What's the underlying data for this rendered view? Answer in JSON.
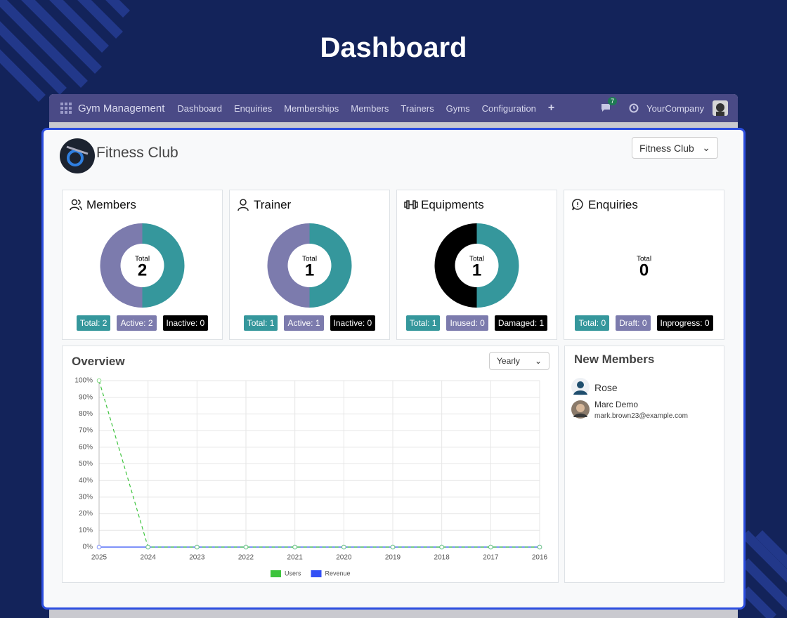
{
  "page_title": "Dashboard",
  "navbar": {
    "app_name": "Gym Management",
    "menu": [
      "Dashboard",
      "Enquiries",
      "Memberships",
      "Members",
      "Trainers",
      "Gyms",
      "Configuration"
    ],
    "message_count": 7,
    "company": "YourCompany"
  },
  "header": {
    "title": "Fitness Club",
    "selector": "Fitness Club"
  },
  "cards": [
    {
      "title": "Members",
      "type": "donut",
      "center_label": "Total",
      "center_value": 2,
      "values": [
        2,
        2,
        0
      ],
      "value_labels": [
        "Total: 2",
        "Active: 2",
        "Inactive: 0"
      ],
      "colors": [
        "#35979c",
        "#7c7bad",
        "#000000"
      ]
    },
    {
      "title": "Trainer",
      "type": "donut",
      "center_label": "Total",
      "center_value": 1,
      "values": [
        1,
        1,
        0
      ],
      "value_labels": [
        "Total: 1",
        "Active: 1",
        "Inactive: 0"
      ],
      "colors": [
        "#35979c",
        "#7c7bad",
        "#000000"
      ]
    },
    {
      "title": "Equipments",
      "type": "donut",
      "center_label": "Total",
      "center_value": 1,
      "values": [
        1,
        0,
        1
      ],
      "value_labels": [
        "Total: 1",
        "Inused: 0",
        "Damaged: 1"
      ],
      "colors": [
        "#35979c",
        "#7c7bad",
        "#000000"
      ]
    },
    {
      "title": "Enquiries",
      "type": "donut",
      "center_label": "Total",
      "center_value": 0,
      "values": [
        0,
        0,
        0
      ],
      "value_labels": [
        "Total: 0",
        "Draft: 0",
        "Inprogress: 0"
      ],
      "colors": [
        "#35979c",
        "#7c7bad",
        "#000000"
      ]
    }
  ],
  "overview": {
    "title": "Overview",
    "period": "Yearly",
    "chart": {
      "type": "line",
      "categories": [
        "2025",
        "2024",
        "2023",
        "2022",
        "2021",
        "2020",
        "2019",
        "2018",
        "2017",
        "2016"
      ],
      "series": [
        {
          "name": "Users",
          "color": "#3ec43e",
          "values": [
            100,
            0,
            0,
            0,
            0,
            0,
            0,
            0,
            0,
            0
          ]
        },
        {
          "name": "Revenue",
          "color": "#3350f5",
          "values": [
            0,
            0,
            0,
            0,
            0,
            0,
            0,
            0,
            0,
            0
          ]
        }
      ],
      "ylim": [
        0,
        100
      ],
      "yticks": [
        {
          "value": 0,
          "label": "0%"
        },
        {
          "value": 10,
          "label": "10%"
        },
        {
          "value": 20,
          "label": "20%"
        },
        {
          "value": 30,
          "label": "30%"
        },
        {
          "value": 40,
          "label": "40%"
        },
        {
          "value": 50,
          "label": "50%"
        },
        {
          "value": 60,
          "label": "60%"
        },
        {
          "value": 70,
          "label": "70%"
        },
        {
          "value": 80,
          "label": "80%"
        },
        {
          "value": 90,
          "label": "90%"
        },
        {
          "value": 100,
          "label": "100%"
        }
      ],
      "grid": true
    }
  },
  "new_members": {
    "title": "New Members",
    "members": [
      {
        "name": "Rose"
      },
      {
        "name": "Marc Demo",
        "email": "mark.brown23@example.com"
      }
    ]
  }
}
